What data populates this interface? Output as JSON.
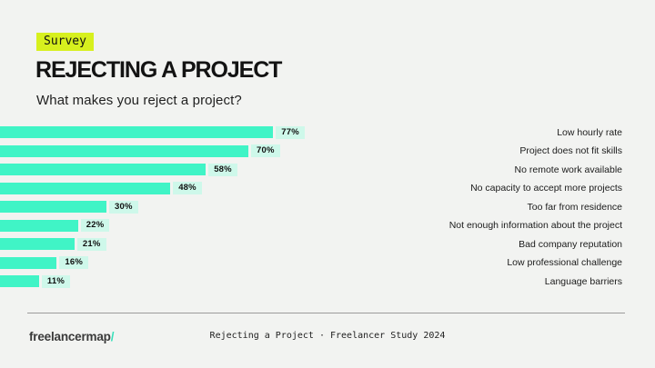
{
  "header": {
    "badge_label": "Survey",
    "title": "REJECTING A PROJECT",
    "subtitle": "What makes you reject a project?"
  },
  "chart_data": {
    "type": "bar",
    "orientation": "horizontal",
    "title": "What makes you reject a project?",
    "categories": [
      "Low hourly rate",
      "Project does not fit skills",
      "No remote work available",
      "No capacity to accept more projects",
      "Too far from residence",
      "Not enough information about the project",
      "Bad company reputation",
      "Low professional challenge",
      "Language barriers"
    ],
    "values": [
      77,
      70,
      58,
      48,
      30,
      22,
      21,
      16,
      11
    ],
    "value_suffix": "%",
    "xlim": [
      0,
      100
    ],
    "grid": false,
    "legend": false,
    "bar_color": "#40F4C6",
    "value_pill_color": "#CEF8EA"
  },
  "footer": {
    "logo_text": "freelancermap",
    "logo_slash": "/",
    "caption": "Rejecting a Project · Freelancer Study 2024"
  },
  "colors": {
    "background": "#F2F3F1",
    "badge_background": "#D7F01E",
    "accent_teal": "#40F4C6",
    "divider": "#9B9B9B"
  }
}
